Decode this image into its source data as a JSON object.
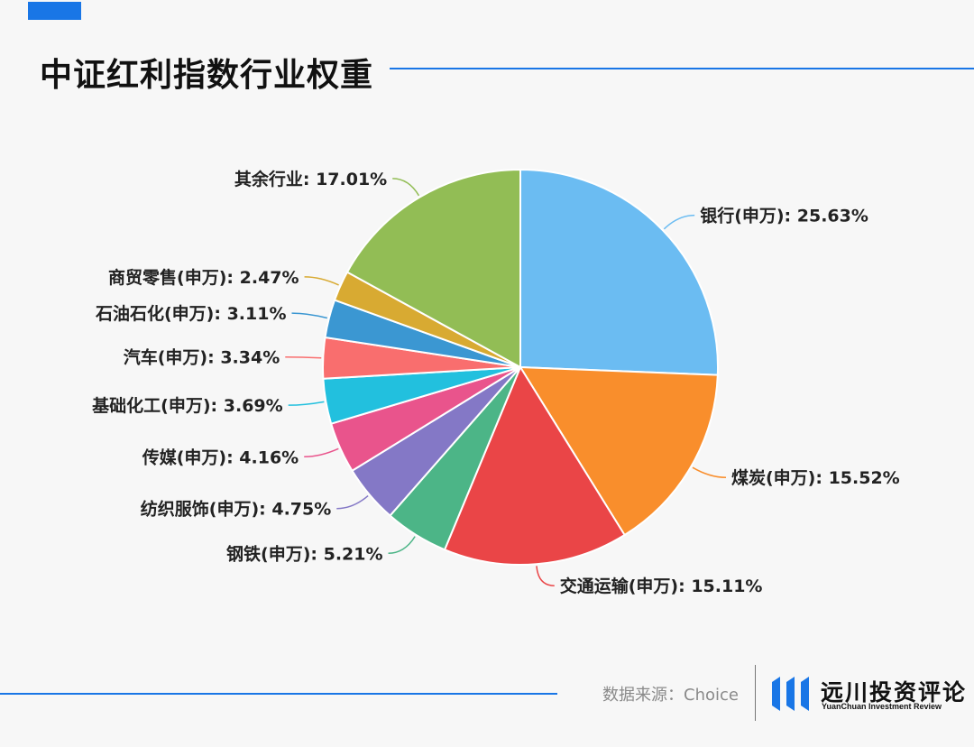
{
  "header": {
    "title": "中证红利指数行业权重"
  },
  "chart_data": {
    "type": "pie",
    "title": "",
    "slices": [
      {
        "name": "银行(申万)",
        "value": 25.63,
        "color": "#6bbcf2"
      },
      {
        "name": "煤炭(申万)",
        "value": 15.52,
        "color": "#f98e2c"
      },
      {
        "name": "交通运输(申万)",
        "value": 15.11,
        "color": "#ea4547"
      },
      {
        "name": "钢铁(申万)",
        "value": 5.21,
        "color": "#4cb587"
      },
      {
        "name": "纺织服饰(申万)",
        "value": 4.75,
        "color": "#8478c6"
      },
      {
        "name": "传媒(申万)",
        "value": 4.16,
        "color": "#e9548c"
      },
      {
        "name": "基础化工(申万)",
        "value": 3.69,
        "color": "#22c0de"
      },
      {
        "name": "汽车(申万)",
        "value": 3.34,
        "color": "#f96e6e"
      },
      {
        "name": "石油石化(申万)",
        "value": 3.11,
        "color": "#3b97d2"
      },
      {
        "name": "商贸零售(申万)",
        "value": 2.47,
        "color": "#d8aa32"
      },
      {
        "name": "其余行业",
        "value": 17.01,
        "color": "#92bd55"
      }
    ],
    "value_suffix": "%",
    "start_angle": "12 o'clock, clockwise"
  },
  "footer": {
    "source": "数据来源：Choice",
    "brand_cn": "远川投资评论",
    "brand_en": "YuanChuan Investment Review"
  }
}
